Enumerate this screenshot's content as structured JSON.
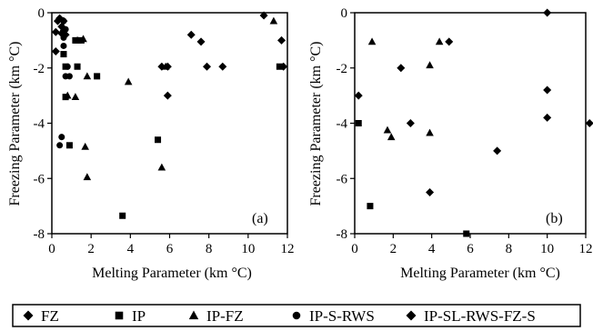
{
  "chart_data": [
    {
      "type": "scatter",
      "panel_label": "(a)",
      "xlabel": "Melting Parameter (km °C)",
      "ylabel": "Freezing Parameter (km °C)",
      "xlim": [
        0,
        12
      ],
      "ylim": [
        -8,
        0
      ],
      "xticks": [
        0,
        2,
        4,
        6,
        8,
        10,
        12
      ],
      "yticks": [
        0,
        -2,
        -4,
        -6,
        -8
      ],
      "series": [
        {
          "name": "FZ",
          "marker": "diamond",
          "points": [
            [
              0.2,
              -0.7
            ],
            [
              0.3,
              -0.3
            ],
            [
              0.4,
              -0.2
            ],
            [
              0.5,
              -0.5
            ],
            [
              0.6,
              -0.3
            ],
            [
              0.2,
              -1.4
            ],
            [
              0.5,
              -0.75
            ],
            [
              0.7,
              -0.8
            ],
            [
              5.6,
              -1.95
            ],
            [
              5.9,
              -1.95
            ],
            [
              5.9,
              -3.0
            ],
            [
              7.1,
              -0.8
            ],
            [
              7.6,
              -1.05
            ],
            [
              7.9,
              -1.95
            ],
            [
              8.7,
              -1.95
            ],
            [
              10.8,
              -0.1
            ],
            [
              11.7,
              -1.0
            ],
            [
              11.8,
              -1.95
            ]
          ]
        },
        {
          "name": "IP",
          "marker": "square",
          "points": [
            [
              0.6,
              -1.5
            ],
            [
              0.7,
              -1.95
            ],
            [
              0.7,
              -3.05
            ],
            [
              0.9,
              -4.8
            ],
            [
              1.2,
              -1.0
            ],
            [
              1.3,
              -1.95
            ],
            [
              1.5,
              -1.0
            ],
            [
              2.3,
              -2.3
            ],
            [
              3.6,
              -7.35
            ],
            [
              5.4,
              -4.6
            ],
            [
              11.6,
              -1.95
            ]
          ]
        },
        {
          "name": "IP-FZ",
          "marker": "triangle",
          "points": [
            [
              0.6,
              -0.55
            ],
            [
              0.8,
              -3.0
            ],
            [
              1.2,
              -3.05
            ],
            [
              1.3,
              -1.0
            ],
            [
              1.7,
              -4.85
            ],
            [
              1.8,
              -5.95
            ],
            [
              1.8,
              -2.3
            ],
            [
              1.6,
              -0.95
            ],
            [
              3.9,
              -2.5
            ],
            [
              5.6,
              -5.6
            ],
            [
              5.8,
              -1.95
            ],
            [
              11.3,
              -0.3
            ]
          ]
        },
        {
          "name": "IP-S-RWS",
          "marker": "circle",
          "points": [
            [
              0.4,
              -4.8
            ],
            [
              0.5,
              -4.5
            ],
            [
              0.6,
              -0.9
            ],
            [
              0.6,
              -1.2
            ],
            [
              0.7,
              -2.3
            ],
            [
              0.8,
              -1.95
            ],
            [
              0.9,
              -2.3
            ],
            [
              0.7,
              -0.6
            ],
            [
              0.6,
              -0.3
            ]
          ]
        }
      ]
    },
    {
      "type": "scatter",
      "panel_label": "(b)",
      "xlabel": "Melting Parameter (km °C)",
      "ylabel": "Freezing Parameter (km °C)",
      "xlim": [
        0,
        12
      ],
      "ylim": [
        -8,
        0
      ],
      "xticks": [
        0,
        2,
        4,
        6,
        8,
        10,
        12
      ],
      "yticks": [
        0,
        -2,
        -4,
        -6,
        -8
      ],
      "series": [
        {
          "name": "IP",
          "marker": "square",
          "points": [
            [
              0.2,
              -4.0
            ],
            [
              0.8,
              -7.0
            ],
            [
              5.8,
              -8.0
            ]
          ]
        },
        {
          "name": "IP-FZ",
          "marker": "triangle",
          "points": [
            [
              0.9,
              -1.05
            ],
            [
              1.7,
              -4.25
            ],
            [
              1.9,
              -4.5
            ],
            [
              3.9,
              -1.9
            ],
            [
              3.9,
              -4.35
            ],
            [
              4.4,
              -1.05
            ]
          ]
        },
        {
          "name": "IP-SL-RWS-FZ-S",
          "marker": "diamond",
          "points": [
            [
              0.2,
              -3.0
            ],
            [
              2.4,
              -2.0
            ],
            [
              2.9,
              -4.0
            ],
            [
              3.9,
              -6.5
            ],
            [
              4.9,
              -1.05
            ],
            [
              7.4,
              -5.0
            ],
            [
              10.0,
              0.0
            ],
            [
              10.0,
              -2.8
            ],
            [
              10.0,
              -3.8
            ],
            [
              12.2,
              -4.0
            ]
          ]
        }
      ]
    }
  ],
  "legend": {
    "items": [
      {
        "marker": "diamond",
        "label": "FZ"
      },
      {
        "marker": "square",
        "label": "IP"
      },
      {
        "marker": "triangle",
        "label": "IP-FZ"
      },
      {
        "marker": "circle",
        "label": "IP-S-RWS"
      },
      {
        "marker": "diamond",
        "label": "IP-SL-RWS-FZ-S"
      }
    ]
  }
}
